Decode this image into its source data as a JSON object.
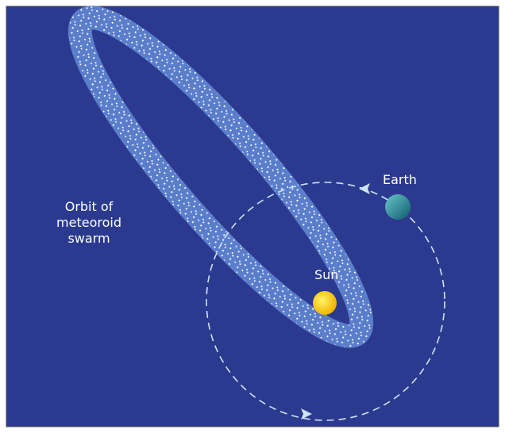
{
  "labels": {
    "earth": "Earth",
    "sun": "Sun",
    "orbit": [
      "Orbit of",
      "meteoroid",
      "swarm"
    ]
  }
}
